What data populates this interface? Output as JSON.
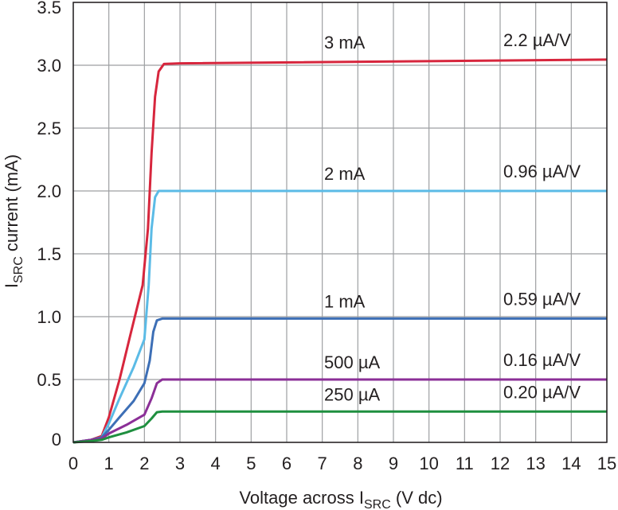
{
  "chart_data": {
    "type": "line",
    "xlabel": {
      "main": "Voltage across I",
      "sub": "SRC",
      "suffix": " (V dc)"
    },
    "ylabel": {
      "main": "I",
      "sub": "SRC",
      "suffix": " current (mA)"
    },
    "xlim": [
      0,
      15
    ],
    "ylim": [
      0,
      3.5
    ],
    "xticks": [
      0,
      1,
      2,
      3,
      4,
      5,
      6,
      7,
      8,
      9,
      10,
      11,
      12,
      13,
      14,
      15
    ],
    "yticks": [
      {
        "value": 0,
        "label": "0"
      },
      {
        "value": 0.5,
        "label": "0.5"
      },
      {
        "value": 1.0,
        "label": "1.0"
      },
      {
        "value": 1.5,
        "label": "1.5"
      },
      {
        "value": 2.0,
        "label": "2.0"
      },
      {
        "value": 2.5,
        "label": "2.5"
      },
      {
        "value": 3.0,
        "label": "3.0"
      },
      {
        "value": 3.5,
        "label": "3.5"
      }
    ],
    "grid": true,
    "series": [
      {
        "name": "3 mA",
        "annotation": "2.2 µA/V",
        "color": "#d7263d",
        "points": [
          [
            0,
            0
          ],
          [
            0.5,
            0.02
          ],
          [
            0.8,
            0.05
          ],
          [
            1.0,
            0.2
          ],
          [
            1.3,
            0.5
          ],
          [
            1.6,
            0.85
          ],
          [
            1.95,
            1.25
          ],
          [
            2.1,
            1.7
          ],
          [
            2.2,
            2.3
          ],
          [
            2.3,
            2.75
          ],
          [
            2.4,
            2.95
          ],
          [
            2.55,
            3.01
          ],
          [
            3,
            3.015
          ],
          [
            15,
            3.045
          ]
        ]
      },
      {
        "name": "2 mA",
        "annotation": "0.96 µA/V",
        "color": "#5bbbe6",
        "points": [
          [
            0,
            0
          ],
          [
            0.5,
            0.02
          ],
          [
            0.8,
            0.04
          ],
          [
            1.0,
            0.15
          ],
          [
            1.3,
            0.35
          ],
          [
            1.7,
            0.6
          ],
          [
            2.0,
            0.82
          ],
          [
            2.12,
            1.25
          ],
          [
            2.2,
            1.7
          ],
          [
            2.3,
            1.95
          ],
          [
            2.4,
            2.0
          ],
          [
            15,
            2.0
          ]
        ]
      },
      {
        "name": "1 mA",
        "annotation": "0.59 µA/V",
        "color": "#3d6fb6",
        "points": [
          [
            0,
            0
          ],
          [
            0.5,
            0.02
          ],
          [
            0.8,
            0.04
          ],
          [
            1.0,
            0.1
          ],
          [
            1.3,
            0.2
          ],
          [
            1.7,
            0.33
          ],
          [
            2.0,
            0.47
          ],
          [
            2.15,
            0.65
          ],
          [
            2.25,
            0.88
          ],
          [
            2.35,
            0.97
          ],
          [
            2.5,
            0.985
          ],
          [
            15,
            0.985
          ]
        ]
      },
      {
        "name": "500 µA",
        "annotation": "0.16 µA/V",
        "color": "#8b2f97",
        "points": [
          [
            0,
            0
          ],
          [
            0.5,
            0.02
          ],
          [
            0.8,
            0.03
          ],
          [
            1.0,
            0.07
          ],
          [
            1.5,
            0.14
          ],
          [
            2.0,
            0.22
          ],
          [
            2.2,
            0.35
          ],
          [
            2.35,
            0.47
          ],
          [
            2.5,
            0.5
          ],
          [
            15,
            0.5
          ]
        ]
      },
      {
        "name": "250 µA",
        "annotation": "0.20 µA/V",
        "color": "#1f8f3f",
        "points": [
          [
            0,
            0
          ],
          [
            0.5,
            0.01
          ],
          [
            0.8,
            0.02
          ],
          [
            1.0,
            0.04
          ],
          [
            1.5,
            0.08
          ],
          [
            2.0,
            0.13
          ],
          [
            2.2,
            0.19
          ],
          [
            2.35,
            0.24
          ],
          [
            2.5,
            0.245
          ],
          [
            15,
            0.245
          ]
        ]
      }
    ]
  }
}
